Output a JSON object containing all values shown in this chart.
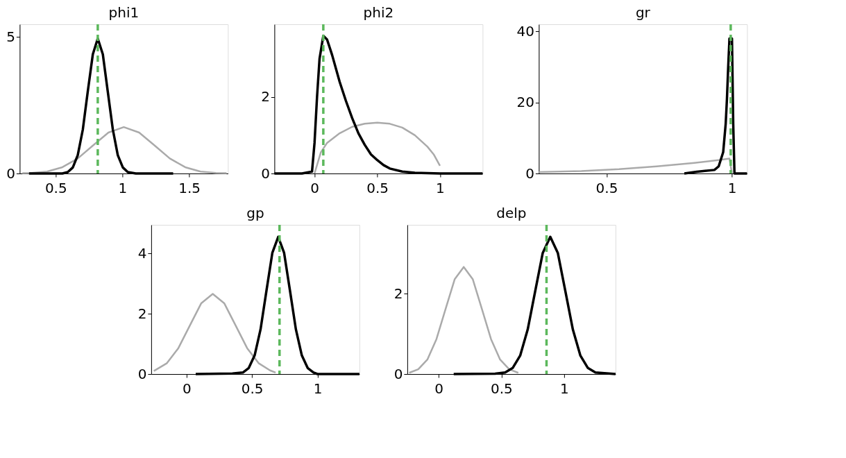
{
  "chart_data": [
    {
      "type": "line",
      "title": "phi1",
      "xlim": [
        0.23,
        1.79
      ],
      "xticks": [
        0.5,
        1,
        1.5
      ],
      "ylim": [
        0,
        5.47
      ],
      "yticks": [
        0,
        5
      ],
      "grid": false,
      "series": [
        {
          "color": "#aaaaaa",
          "x": [
            0.25,
            0.32,
            0.435,
            0.55,
            0.665,
            0.78,
            0.895,
            1.01,
            1.125,
            1.24,
            1.355,
            1.47,
            1.585,
            1.7,
            1.78
          ],
          "values": [
            0.01,
            0.02,
            0.07,
            0.23,
            0.55,
            1.03,
            1.5,
            1.7,
            1.5,
            1.03,
            0.55,
            0.23,
            0.07,
            0.02,
            0.01
          ]
        },
        {
          "color": "#000000",
          "x": [
            0.3,
            0.55,
            0.59,
            0.628,
            0.665,
            0.703,
            0.74,
            0.778,
            0.815,
            0.853,
            0.89,
            0.928,
            0.965,
            1.003,
            1.04,
            1.1,
            1.38
          ],
          "values": [
            0,
            0,
            0.05,
            0.22,
            0.67,
            1.61,
            3.0,
            4.37,
            4.95,
            4.37,
            3.0,
            1.61,
            0.67,
            0.22,
            0.05,
            0,
            0
          ]
        }
      ],
      "ref_lines": [
        {
          "axis": "x",
          "value": 0.815,
          "color": "#5cb85c",
          "line_style": "dashed"
        }
      ]
    },
    {
      "type": "line",
      "title": "phi2",
      "xlim": [
        -0.32,
        1.34
      ],
      "xticks": [
        0,
        0.5,
        1
      ],
      "ylim": [
        0,
        3.9
      ],
      "yticks": [
        0,
        2
      ],
      "grid": false,
      "series": [
        {
          "color": "#aaaaaa",
          "x": [
            0,
            0.05,
            0.1,
            0.2,
            0.3,
            0.4,
            0.5,
            0.6,
            0.7,
            0.8,
            0.9,
            0.95,
            1.0
          ],
          "values": [
            0,
            0.55,
            0.8,
            1.05,
            1.22,
            1.3,
            1.33,
            1.3,
            1.2,
            1.0,
            0.7,
            0.5,
            0.2
          ]
        },
        {
          "color": "#000000",
          "x": [
            -0.32,
            -0.1,
            -0.02,
            0,
            0.02,
            0.04,
            0.07,
            0.1,
            0.14,
            0.2,
            0.25,
            0.3,
            0.35,
            0.4,
            0.45,
            0.5,
            0.55,
            0.6,
            0.7,
            0.8,
            1.0,
            1.34
          ],
          "values": [
            0,
            0,
            0.05,
            0.8,
            2.0,
            3.0,
            3.6,
            3.5,
            3.1,
            2.4,
            1.9,
            1.45,
            1.05,
            0.75,
            0.5,
            0.35,
            0.22,
            0.13,
            0.05,
            0.02,
            0,
            0
          ]
        }
      ],
      "ref_lines": [
        {
          "axis": "x",
          "value": 0.07,
          "color": "#5cb85c",
          "line_style": "dashed"
        }
      ]
    },
    {
      "type": "line",
      "title": "gr",
      "xlim": [
        0.23,
        1.06
      ],
      "xticks": [
        0.5,
        1
      ],
      "ylim": [
        0,
        42
      ],
      "yticks": [
        0,
        20,
        40
      ],
      "grid": false,
      "series": [
        {
          "color": "#aaaaaa",
          "x": [
            0.23,
            0.4,
            0.55,
            0.7,
            0.85,
            0.95,
            0.99,
            1.0
          ],
          "values": [
            0.4,
            0.7,
            1.2,
            2.0,
            3.0,
            3.8,
            4.2,
            0
          ]
        },
        {
          "color": "#000000",
          "x": [
            0.81,
            0.86,
            0.93,
            0.947,
            0.965,
            0.975,
            0.98,
            0.985,
            0.99,
            1.0,
            1.005,
            1.01,
            1.06
          ],
          "values": [
            0,
            0.5,
            1,
            2,
            6,
            14,
            21,
            30,
            38,
            38,
            14,
            0,
            0
          ]
        }
      ],
      "ref_lines": [
        {
          "axis": "x",
          "value": 0.995,
          "color": "#5cb85c",
          "line_style": "dashed"
        }
      ]
    },
    {
      "type": "line",
      "title": "gp",
      "xlim": [
        -0.27,
        1.32
      ],
      "xticks": [
        0,
        0.5,
        1
      ],
      "ylim": [
        0,
        4.95
      ],
      "yticks": [
        0,
        2,
        4
      ],
      "grid": false,
      "series": [
        {
          "color": "#aaaaaa",
          "x": [
            -0.25,
            -0.15,
            -0.0625,
            0.025,
            0.1125,
            0.2,
            0.2875,
            0.375,
            0.4625,
            0.55,
            0.6375,
            0.68
          ],
          "values": [
            0.1,
            0.36,
            0.86,
            1.61,
            2.35,
            2.66,
            2.35,
            1.61,
            0.86,
            0.36,
            0.12,
            0.05
          ]
        },
        {
          "color": "#000000",
          "x": [
            0.07,
            0.35,
            0.43,
            0.475,
            0.52,
            0.565,
            0.61,
            0.655,
            0.7,
            0.745,
            0.79,
            0.835,
            0.88,
            0.925,
            0.97,
            1.0,
            1.32
          ],
          "values": [
            0,
            0.02,
            0.05,
            0.2,
            0.62,
            1.48,
            2.76,
            4.02,
            4.55,
            4.02,
            2.76,
            1.48,
            0.62,
            0.2,
            0.05,
            0,
            0
          ]
        }
      ],
      "ref_lines": [
        {
          "axis": "x",
          "value": 0.71,
          "color": "#5cb85c",
          "line_style": "dashed"
        }
      ]
    },
    {
      "type": "line",
      "title": "delp",
      "xlim": [
        -0.25,
        1.41
      ],
      "xticks": [
        0,
        0.5,
        1
      ],
      "ylim": [
        0,
        3.72
      ],
      "yticks": [
        0,
        2
      ],
      "grid": false,
      "series": [
        {
          "color": "#aaaaaa",
          "x": [
            -0.235,
            -0.1625,
            -0.09,
            -0.0175,
            0.055,
            0.1275,
            0.2,
            0.2725,
            0.345,
            0.4175,
            0.49,
            0.5625,
            0.635
          ],
          "values": [
            0.03,
            0.12,
            0.36,
            0.87,
            1.62,
            2.36,
            2.67,
            2.36,
            1.62,
            0.87,
            0.36,
            0.12,
            0.03
          ]
        },
        {
          "color": "#000000",
          "x": [
            0.12,
            0.45,
            0.53,
            0.59,
            0.65,
            0.71,
            0.77,
            0.83,
            0.89,
            0.95,
            1.01,
            1.07,
            1.13,
            1.19,
            1.25,
            1.41
          ],
          "values": [
            0,
            0.01,
            0.04,
            0.15,
            0.46,
            1.11,
            2.07,
            3.02,
            3.42,
            3.02,
            2.07,
            1.11,
            0.46,
            0.15,
            0.04,
            0
          ]
        }
      ],
      "ref_lines": [
        {
          "axis": "x",
          "value": 0.86,
          "color": "#5cb85c",
          "line_style": "dashed"
        }
      ]
    }
  ]
}
